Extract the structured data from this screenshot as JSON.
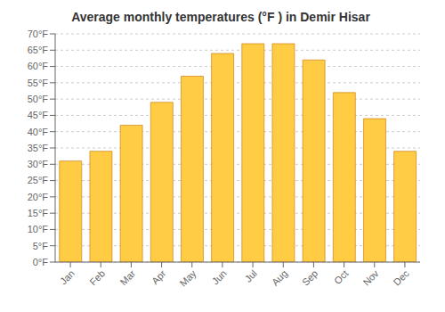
{
  "chart_data": {
    "type": "bar",
    "title": "Average monthly temperatures (°F ) in Demir Hisar",
    "categories": [
      "Jan",
      "Feb",
      "Mar",
      "Apr",
      "May",
      "Jun",
      "Jul",
      "Aug",
      "Sep",
      "Oct",
      "Nov",
      "Dec"
    ],
    "values": [
      31,
      34,
      42,
      49,
      57,
      64,
      67,
      67,
      62,
      52,
      44,
      34
    ],
    "color": "#FFCC44",
    "ylim": [
      0,
      70
    ],
    "yticks": [
      {
        "value": 0,
        "label": "0°F"
      },
      {
        "value": 5,
        "label": "5°F"
      },
      {
        "value": 10,
        "label": "10°F"
      },
      {
        "value": 15,
        "label": "15°F"
      },
      {
        "value": 20,
        "label": "20°F"
      },
      {
        "value": 25,
        "label": "25°F"
      },
      {
        "value": 30,
        "label": "30°F"
      },
      {
        "value": 35,
        "label": "35°F"
      },
      {
        "value": 40,
        "label": "40°F"
      },
      {
        "value": 45,
        "label": "45°F"
      },
      {
        "value": 50,
        "label": "50°F"
      },
      {
        "value": 55,
        "label": "55°F"
      },
      {
        "value": 60,
        "label": "60°F"
      },
      {
        "value": 65,
        "label": "65°F"
      },
      {
        "value": 70,
        "label": "70°F"
      }
    ],
    "grid": true
  }
}
